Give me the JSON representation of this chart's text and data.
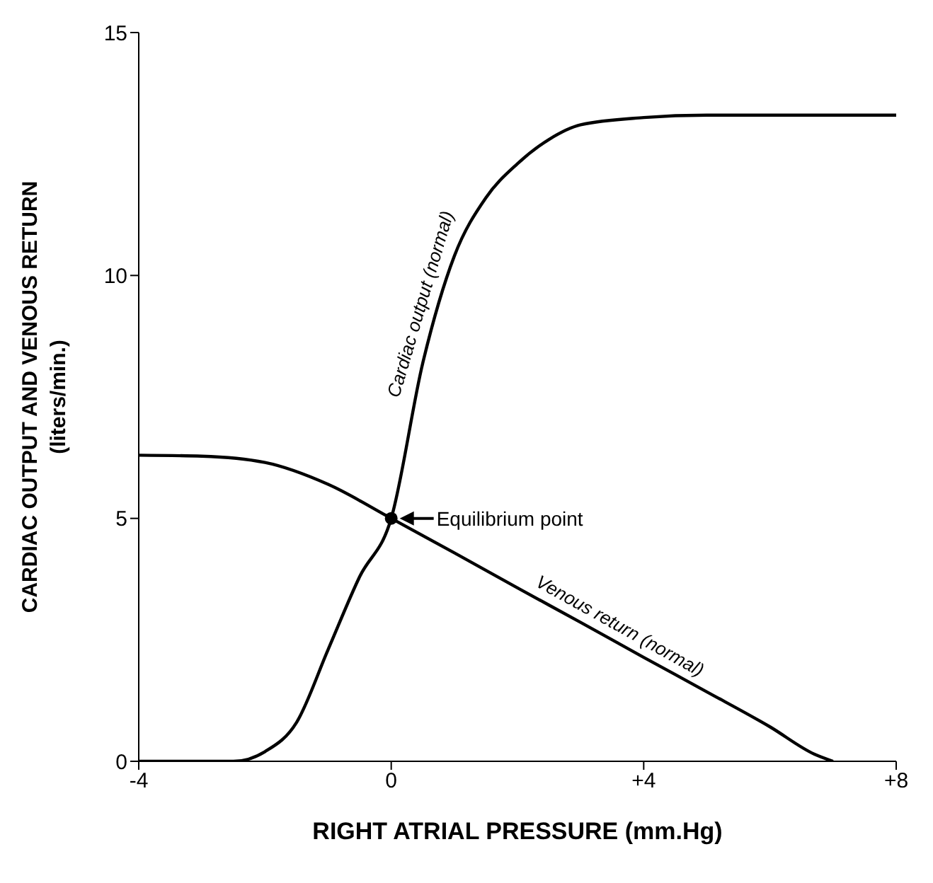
{
  "chart_data": {
    "type": "line",
    "xlabel": "RIGHT ATRIAL PRESSURE (mm.Hg)",
    "ylabel": "CARDIAC OUTPUT AND VENOUS RETURN\n(liters/min.)",
    "xlim": [
      -4,
      8
    ],
    "xticks": [
      -4,
      0,
      {
        "value": 4,
        "label": "+4"
      },
      {
        "value": 8,
        "label": "+8"
      }
    ],
    "ylim": [
      0,
      15
    ],
    "yticks": [
      0,
      5,
      10,
      15
    ],
    "grid": false,
    "legend": false,
    "marker": "none",
    "line_style": "solid",
    "series": [
      {
        "name": "Cardiac output (normal)",
        "color": "#000000",
        "x": [
          -4,
          -3,
          -2.5,
          -2,
          -1.5,
          -1,
          -0.5,
          0,
          0.5,
          1,
          1.5,
          2,
          2.5,
          3,
          4,
          5,
          6,
          7,
          8
        ],
        "values": [
          0,
          0,
          0,
          0.2,
          0.8,
          2.3,
          3.8,
          5,
          8.2,
          10.4,
          11.6,
          12.3,
          12.8,
          13.1,
          13.25,
          13.3,
          13.3,
          13.3,
          13.3
        ]
      },
      {
        "name": "Venous return (normal)",
        "color": "#000000",
        "x": [
          -4,
          -3,
          -2,
          -1,
          0,
          1,
          2,
          3,
          4,
          5,
          6,
          6.7,
          7
        ],
        "values": [
          6.3,
          6.28,
          6.15,
          5.7,
          5,
          4.29,
          3.57,
          2.86,
          2.14,
          1.43,
          0.71,
          0.15,
          0
        ]
      }
    ],
    "annotations": [
      {
        "text": "Equilibrium point",
        "x": 0,
        "y": 5
      }
    ]
  }
}
